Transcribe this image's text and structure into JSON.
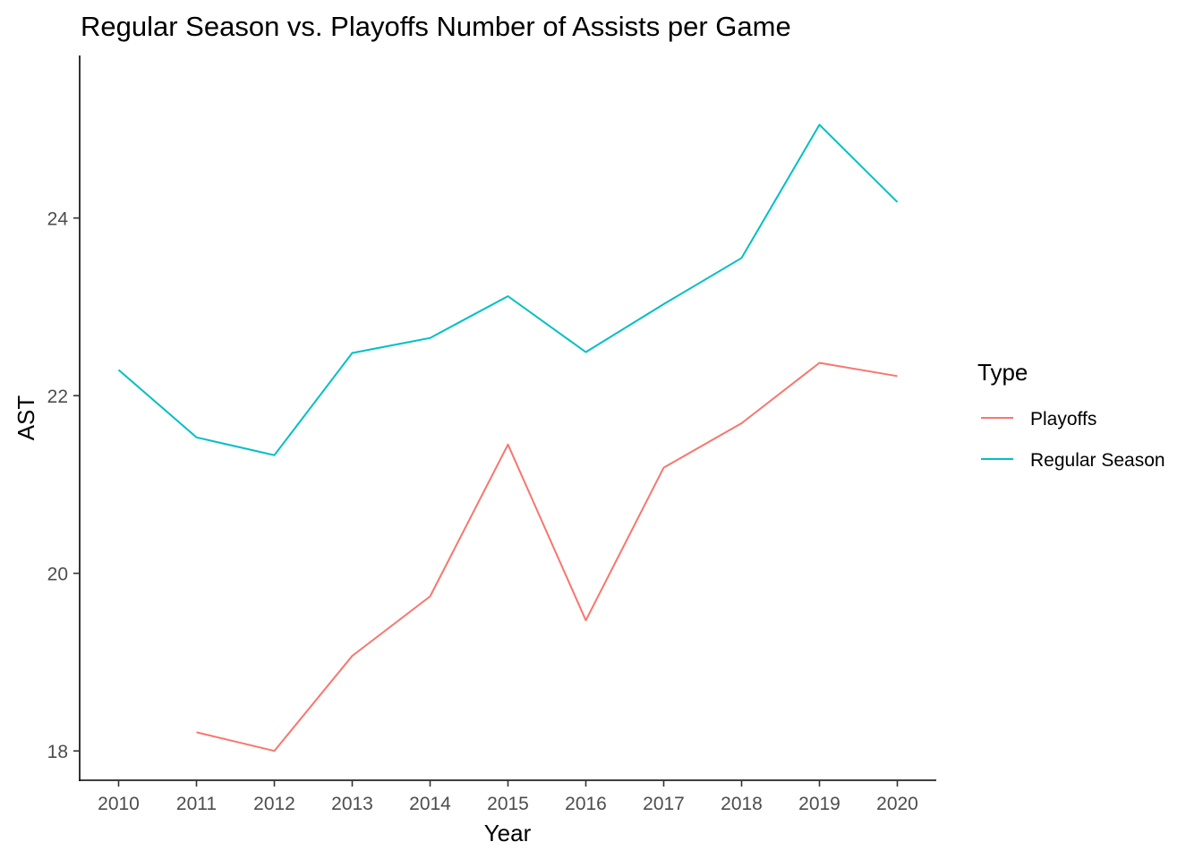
{
  "chart_data": {
    "type": "line",
    "title": "Regular Season vs. Playoffs Number of Assists per Game",
    "xlabel": "Year",
    "ylabel": "AST",
    "x": [
      2010,
      2011,
      2012,
      2013,
      2014,
      2015,
      2016,
      2017,
      2018,
      2019,
      2020
    ],
    "x_ticks": [
      "2010",
      "2011",
      "2012",
      "2013",
      "2014",
      "2015",
      "2016",
      "2017",
      "2018",
      "2019",
      "2020"
    ],
    "y_ticks": [
      "18",
      "20",
      "22",
      "24"
    ],
    "xlim": [
      2009.5,
      2020.5
    ],
    "ylim": [
      17.67,
      25.83
    ],
    "grid": false,
    "legend": {
      "title": "Type",
      "position": "right"
    },
    "series": [
      {
        "name": "Playoffs",
        "color": "#F8766D",
        "values": [
          null,
          18.21,
          18.0,
          19.07,
          19.74,
          21.45,
          19.47,
          21.19,
          21.69,
          22.37,
          22.22
        ]
      },
      {
        "name": "Regular Season",
        "color": "#00BFC4",
        "values": [
          22.29,
          21.53,
          21.33,
          22.48,
          22.65,
          23.12,
          22.49,
          23.03,
          23.55,
          25.05,
          24.18
        ]
      }
    ]
  }
}
